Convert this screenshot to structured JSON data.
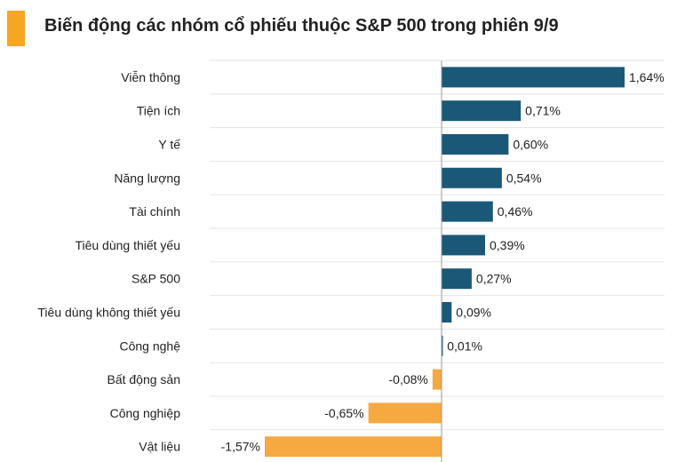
{
  "chart_data": {
    "type": "bar",
    "orientation": "horizontal",
    "title": "Biến động các nhóm cổ phiếu thuộc S&P 500 trong phiên 9/9",
    "categories": [
      "Viễn thông",
      "Tiện ích",
      "Y tế",
      "Năng lượng",
      "Tài chính",
      "Tiêu dùng thiết yếu",
      "S&P 500",
      "Tiêu dùng không thiết yếu",
      "Công nghệ",
      "Bất động sản",
      "Công nghiệp",
      "Vật liệu"
    ],
    "values": [
      1.64,
      0.71,
      0.6,
      0.54,
      0.46,
      0.39,
      0.27,
      0.09,
      0.01,
      -0.08,
      -0.65,
      -1.57
    ],
    "value_labels": [
      "1,64%",
      "0,71%",
      "0,60%",
      "0,54%",
      "0,46%",
      "0,39%",
      "0,27%",
      "0,09%",
      "0,01%",
      "-0,08%",
      "-0,65%",
      "-1,57%"
    ],
    "xlim": [
      -1.57,
      1.64
    ],
    "grid": true,
    "colors": {
      "positive": "#1b5878",
      "negative": "#f5a940",
      "accent": "#f5a623",
      "grid": "#e3e3e3"
    }
  }
}
